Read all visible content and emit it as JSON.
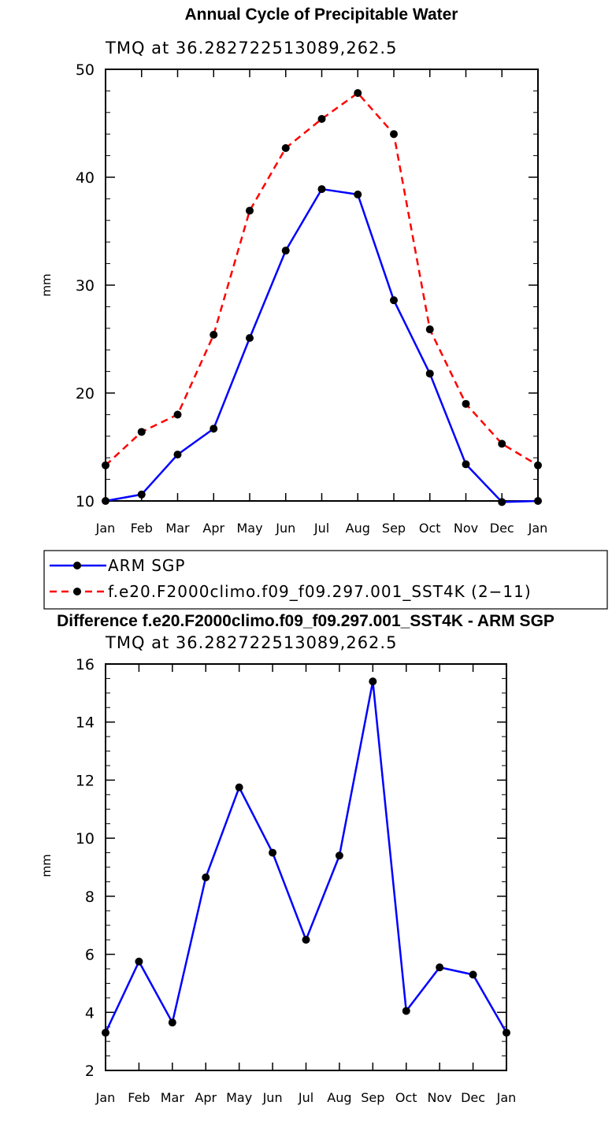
{
  "chart_data": [
    {
      "type": "line",
      "title": "Annual Cycle of Precipitable Water",
      "subtitle": "TMQ at 36.282722513089,262.5",
      "xlabel": "",
      "ylabel": "mm",
      "categories": [
        "Jan",
        "Feb",
        "Mar",
        "Apr",
        "May",
        "Jun",
        "Jul",
        "Aug",
        "Sep",
        "Oct",
        "Nov",
        "Dec",
        "Jan"
      ],
      "ylim": [
        10,
        50
      ],
      "yticks": [
        "10",
        "20",
        "30",
        "40",
        "50"
      ],
      "series": [
        {
          "name": "ARM SGP",
          "color": "#0000ff",
          "dash": "solid",
          "values": [
            10.0,
            10.6,
            14.3,
            16.7,
            25.1,
            33.2,
            38.9,
            38.4,
            28.6,
            21.8,
            13.4,
            9.9,
            10.0
          ]
        },
        {
          "name": "f.e20.F2000climo.f09_f09.297.001_SST4K (2−11)",
          "color": "#ff0000",
          "dash": "dashed",
          "values": [
            13.3,
            16.4,
            18.0,
            25.4,
            36.9,
            42.7,
            45.4,
            47.8,
            44.0,
            25.9,
            19.0,
            15.3,
            13.3
          ]
        }
      ],
      "legend": "below"
    },
    {
      "type": "line",
      "title": "Difference f.e20.F2000climo.f09_f09.297.001_SST4K - ARM SGP",
      "subtitle": "TMQ at 36.282722513089,262.5",
      "xlabel": "",
      "ylabel": "mm",
      "categories": [
        "Jan",
        "Feb",
        "Mar",
        "Apr",
        "May",
        "Jun",
        "Jul",
        "Aug",
        "Sep",
        "Oct",
        "Nov",
        "Dec",
        "Jan"
      ],
      "ylim": [
        2,
        16
      ],
      "yticks": [
        "2",
        "4",
        "6",
        "8",
        "10",
        "12",
        "14",
        "16"
      ],
      "series": [
        {
          "name": "Difference",
          "color": "#0000ff",
          "dash": "solid",
          "values": [
            3.3,
            5.75,
            3.65,
            8.65,
            11.75,
            9.5,
            6.5,
            9.4,
            15.4,
            4.05,
            5.55,
            5.3,
            3.3
          ]
        }
      ]
    }
  ]
}
